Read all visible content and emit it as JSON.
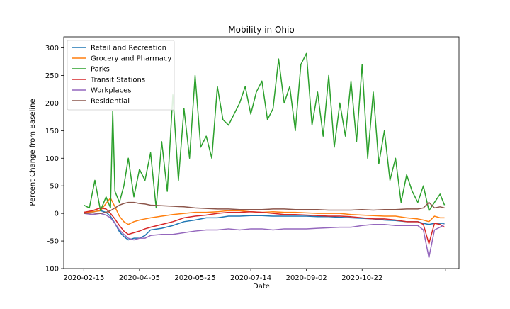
{
  "chart_data": {
    "type": "line",
    "title": "Mobility in Ohio",
    "xlabel": "Date",
    "ylabel": "Percent Change from Baseline",
    "x_start_date": "2020-02-15",
    "x_tick_labels": [
      "2020-02-15",
      "2020-04-05",
      "2020-05-25",
      "2020-07-14",
      "2020-09-02",
      "2020-10-22",
      ""
    ],
    "x_tick_days": [
      0,
      50,
      100,
      150,
      200,
      250,
      325
    ],
    "xlim": [
      -18,
      337
    ],
    "ylim": [
      -100,
      320
    ],
    "y_ticks": [
      -100,
      -50,
      0,
      50,
      100,
      150,
      200,
      250,
      300
    ],
    "legend_position": "top-left",
    "series": [
      {
        "name": "Retail and Recreation",
        "color": "#1f77b4",
        "x": [
          0,
          8,
          15,
          20,
          24,
          28,
          32,
          36,
          40,
          45,
          50,
          55,
          60,
          70,
          80,
          90,
          100,
          110,
          120,
          130,
          140,
          150,
          160,
          170,
          180,
          190,
          200,
          210,
          220,
          230,
          240,
          250,
          260,
          270,
          280,
          290,
          300,
          305,
          310,
          315,
          320,
          324
        ],
        "y": [
          2,
          3,
          5,
          2,
          -5,
          -18,
          -33,
          -42,
          -48,
          -45,
          -45,
          -40,
          -30,
          -27,
          -22,
          -15,
          -12,
          -8,
          -8,
          -5,
          -5,
          -4,
          -4,
          -5,
          -5,
          -5,
          -5,
          -6,
          -6,
          -7,
          -8,
          -9,
          -10,
          -12,
          -13,
          -15,
          -15,
          -18,
          -20,
          -18,
          -18,
          -18
        ]
      },
      {
        "name": "Grocery and Pharmacy",
        "color": "#ff7f0e",
        "x": [
          0,
          8,
          15,
          20,
          24,
          28,
          32,
          36,
          40,
          45,
          50,
          55,
          60,
          70,
          80,
          90,
          100,
          110,
          120,
          130,
          140,
          150,
          160,
          170,
          180,
          190,
          200,
          210,
          220,
          230,
          240,
          250,
          260,
          270,
          280,
          290,
          300,
          305,
          310,
          315,
          320,
          324
        ],
        "y": [
          2,
          3,
          5,
          18,
          28,
          12,
          -5,
          -15,
          -20,
          -15,
          -12,
          -10,
          -8,
          -5,
          -2,
          0,
          2,
          2,
          3,
          5,
          5,
          3,
          2,
          3,
          2,
          2,
          1,
          0,
          0,
          0,
          -2,
          -3,
          -4,
          -5,
          -5,
          -8,
          -10,
          -12,
          -15,
          -5,
          -8,
          -8
        ]
      },
      {
        "name": "Parks",
        "color": "#2ca02c",
        "x": [
          0,
          5,
          10,
          15,
          20,
          24,
          26,
          28,
          32,
          36,
          40,
          45,
          50,
          55,
          60,
          65,
          70,
          75,
          80,
          85,
          90,
          95,
          100,
          105,
          110,
          115,
          120,
          125,
          130,
          135,
          140,
          145,
          150,
          155,
          160,
          165,
          170,
          175,
          180,
          185,
          190,
          195,
          200,
          205,
          210,
          215,
          220,
          225,
          230,
          235,
          240,
          245,
          250,
          255,
          260,
          265,
          270,
          275,
          280,
          285,
          290,
          295,
          300,
          305,
          310,
          315,
          320,
          324
        ],
        "y": [
          15,
          10,
          60,
          5,
          30,
          10,
          185,
          40,
          20,
          50,
          100,
          30,
          80,
          60,
          110,
          10,
          130,
          40,
          215,
          60,
          190,
          100,
          250,
          120,
          140,
          100,
          230,
          170,
          160,
          180,
          200,
          230,
          180,
          220,
          240,
          170,
          190,
          280,
          200,
          230,
          150,
          270,
          290,
          160,
          220,
          140,
          250,
          120,
          200,
          140,
          240,
          130,
          270,
          100,
          220,
          90,
          150,
          60,
          100,
          20,
          70,
          40,
          20,
          50,
          5,
          20,
          35,
          15
        ]
      },
      {
        "name": "Transit Stations",
        "color": "#d62728",
        "x": [
          0,
          8,
          15,
          20,
          24,
          28,
          32,
          36,
          40,
          45,
          50,
          55,
          60,
          70,
          80,
          90,
          100,
          110,
          120,
          130,
          140,
          150,
          160,
          170,
          180,
          190,
          200,
          210,
          220,
          230,
          240,
          250,
          260,
          270,
          280,
          290,
          300,
          305,
          310,
          315,
          320,
          324
        ],
        "y": [
          2,
          5,
          10,
          8,
          0,
          -10,
          -22,
          -32,
          -38,
          -35,
          -32,
          -28,
          -25,
          -20,
          -15,
          -8,
          -5,
          -3,
          0,
          2,
          2,
          3,
          2,
          0,
          -2,
          -2,
          -3,
          -4,
          -5,
          -5,
          -6,
          -8,
          -10,
          -10,
          -12,
          -15,
          -15,
          -20,
          -55,
          -18,
          -20,
          -25
        ]
      },
      {
        "name": "Workplaces",
        "color": "#9467bd",
        "x": [
          0,
          8,
          15,
          20,
          24,
          28,
          32,
          36,
          40,
          45,
          50,
          55,
          60,
          70,
          80,
          90,
          100,
          110,
          120,
          130,
          140,
          150,
          160,
          170,
          180,
          190,
          200,
          210,
          220,
          230,
          240,
          250,
          260,
          270,
          280,
          290,
          300,
          305,
          310,
          315,
          320,
          324
        ],
        "y": [
          0,
          -2,
          0,
          -3,
          -8,
          -18,
          -30,
          -38,
          -45,
          -48,
          -45,
          -45,
          -40,
          -38,
          -38,
          -35,
          -32,
          -30,
          -30,
          -28,
          -30,
          -28,
          -28,
          -30,
          -28,
          -28,
          -28,
          -27,
          -26,
          -25,
          -25,
          -22,
          -20,
          -20,
          -22,
          -22,
          -22,
          -30,
          -80,
          -30,
          -25,
          -20
        ]
      },
      {
        "name": "Residential",
        "color": "#8c564b",
        "x": [
          0,
          8,
          15,
          20,
          24,
          28,
          32,
          36,
          40,
          45,
          50,
          55,
          60,
          70,
          80,
          90,
          100,
          110,
          120,
          130,
          140,
          150,
          160,
          170,
          180,
          190,
          200,
          210,
          220,
          230,
          240,
          250,
          260,
          270,
          280,
          290,
          300,
          305,
          310,
          315,
          320,
          324
        ],
        "y": [
          0,
          1,
          0,
          2,
          5,
          10,
          15,
          18,
          20,
          20,
          18,
          17,
          15,
          14,
          13,
          12,
          10,
          9,
          8,
          8,
          7,
          7,
          7,
          8,
          8,
          7,
          7,
          7,
          6,
          6,
          6,
          7,
          6,
          7,
          7,
          8,
          8,
          10,
          20,
          10,
          12,
          10
        ]
      }
    ]
  }
}
